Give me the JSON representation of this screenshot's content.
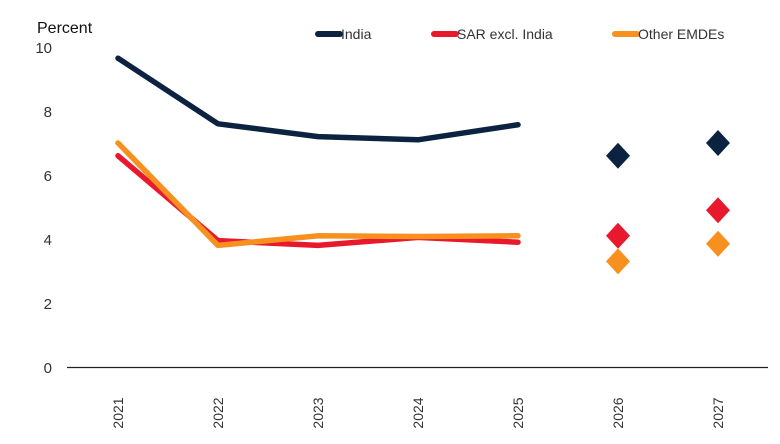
{
  "chart_data": {
    "type": "line",
    "ylabel": "Percent",
    "ylim": [
      0,
      10
    ],
    "yticks": [
      0,
      2,
      4,
      6,
      8,
      10
    ],
    "categories": [
      "2021",
      "2022",
      "2023",
      "2024",
      "2025",
      "2026",
      "2027"
    ],
    "grid": false,
    "legend_position": "top",
    "series": [
      {
        "name": "India",
        "color": "#0b2240",
        "line_values": [
          9.65,
          7.6,
          7.2,
          7.1,
          7.57,
          null,
          null
        ],
        "marker_values": [
          null,
          null,
          null,
          null,
          null,
          6.6,
          7.0
        ]
      },
      {
        "name": "SAR excl. India",
        "color": "#e8192c",
        "line_values": [
          6.6,
          3.95,
          3.8,
          4.05,
          3.9,
          null,
          null
        ],
        "marker_values": [
          null,
          null,
          null,
          null,
          null,
          4.1,
          4.9
        ]
      },
      {
        "name": "Other EMDEs",
        "color": "#f7901e",
        "line_values": [
          7.0,
          3.8,
          4.1,
          4.08,
          4.1,
          null,
          null
        ],
        "marker_values": [
          null,
          null,
          null,
          null,
          null,
          3.3,
          3.85
        ]
      }
    ]
  }
}
